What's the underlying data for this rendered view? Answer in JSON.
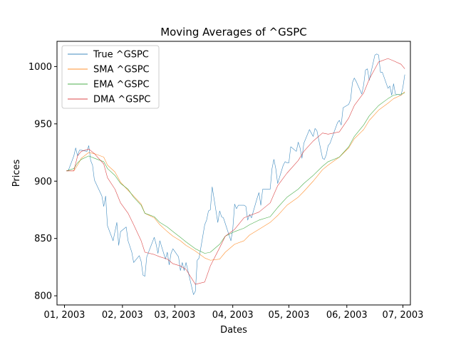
{
  "chart_data": {
    "type": "line",
    "title": "Moving Averages of ^GSPC",
    "xlabel": "Dates",
    "ylabel": "Prices",
    "ylim": [
      792,
      1022
    ],
    "xlim": [
      "2002-12-28",
      "2003-07-05"
    ],
    "x_ticks": [
      {
        "date": "2003-01-01",
        "label": "01, 2003"
      },
      {
        "date": "2003-02-01",
        "label": "02, 2003"
      },
      {
        "date": "2003-03-01",
        "label": "03, 2003"
      },
      {
        "date": "2003-04-01",
        "label": "04, 2003"
      },
      {
        "date": "2003-05-01",
        "label": "05, 2003"
      },
      {
        "date": "2003-06-01",
        "label": "06, 2003"
      },
      {
        "date": "2003-07-01",
        "label": "07, 2003"
      }
    ],
    "y_ticks": [
      800,
      850,
      900,
      950,
      1000
    ],
    "legend_position": "top-left",
    "grid": false,
    "series": [
      {
        "name": "True ^GSPC",
        "color": "#1f77b4",
        "points": [
          [
            "2003-01-02",
            909
          ],
          [
            "2003-01-03",
            909
          ],
          [
            "2003-01-06",
            922
          ],
          [
            "2003-01-07",
            929
          ],
          [
            "2003-01-08",
            922
          ],
          [
            "2003-01-09",
            927
          ],
          [
            "2003-01-10",
            927
          ],
          [
            "2003-01-13",
            926
          ],
          [
            "2003-01-14",
            931
          ],
          [
            "2003-01-15",
            918
          ],
          [
            "2003-01-16",
            914
          ],
          [
            "2003-01-17",
            901
          ],
          [
            "2003-01-21",
            887
          ],
          [
            "2003-01-22",
            878
          ],
          [
            "2003-01-23",
            887
          ],
          [
            "2003-01-24",
            861
          ],
          [
            "2003-01-27",
            848
          ],
          [
            "2003-01-28",
            856
          ],
          [
            "2003-01-29",
            864
          ],
          [
            "2003-01-30",
            844
          ],
          [
            "2003-01-31",
            856
          ],
          [
            "2003-02-03",
            860
          ],
          [
            "2003-02-04",
            848
          ],
          [
            "2003-02-05",
            843
          ],
          [
            "2003-02-06",
            838
          ],
          [
            "2003-02-07",
            829
          ],
          [
            "2003-02-10",
            835
          ],
          [
            "2003-02-11",
            830
          ],
          [
            "2003-02-12",
            818
          ],
          [
            "2003-02-13",
            817
          ],
          [
            "2003-02-14",
            834
          ],
          [
            "2003-02-18",
            851
          ],
          [
            "2003-02-19",
            845
          ],
          [
            "2003-02-20",
            837
          ],
          [
            "2003-02-21",
            848
          ],
          [
            "2003-02-24",
            832
          ],
          [
            "2003-02-25",
            838
          ],
          [
            "2003-02-26",
            827
          ],
          [
            "2003-02-27",
            837
          ],
          [
            "2003-02-28",
            841
          ],
          [
            "2003-03-03",
            834
          ],
          [
            "2003-03-04",
            822
          ],
          [
            "2003-03-05",
            829
          ],
          [
            "2003-03-06",
            822
          ],
          [
            "2003-03-07",
            829
          ],
          [
            "2003-03-10",
            808
          ],
          [
            "2003-03-11",
            801
          ],
          [
            "2003-03-12",
            804
          ],
          [
            "2003-03-13",
            831
          ],
          [
            "2003-03-14",
            833
          ],
          [
            "2003-03-17",
            862
          ],
          [
            "2003-03-18",
            866
          ],
          [
            "2003-03-19",
            874
          ],
          [
            "2003-03-20",
            875
          ],
          [
            "2003-03-21",
            895
          ],
          [
            "2003-03-24",
            864
          ],
          [
            "2003-03-25",
            874
          ],
          [
            "2003-03-26",
            869
          ],
          [
            "2003-03-27",
            868
          ],
          [
            "2003-03-28",
            863
          ],
          [
            "2003-03-31",
            848
          ],
          [
            "2003-04-01",
            858
          ],
          [
            "2003-04-02",
            880
          ],
          [
            "2003-04-03",
            876
          ],
          [
            "2003-04-04",
            879
          ],
          [
            "2003-04-07",
            879
          ],
          [
            "2003-04-08",
            878
          ],
          [
            "2003-04-09",
            866
          ],
          [
            "2003-04-10",
            871
          ],
          [
            "2003-04-11",
            868
          ],
          [
            "2003-04-14",
            885
          ],
          [
            "2003-04-15",
            890
          ],
          [
            "2003-04-16",
            879
          ],
          [
            "2003-04-17",
            893
          ],
          [
            "2003-04-21",
            893
          ],
          [
            "2003-04-22",
            911
          ],
          [
            "2003-04-23",
            919
          ],
          [
            "2003-04-24",
            911
          ],
          [
            "2003-04-25",
            898
          ],
          [
            "2003-04-28",
            914
          ],
          [
            "2003-04-29",
            917
          ],
          [
            "2003-04-30",
            916
          ],
          [
            "2003-05-01",
            916
          ],
          [
            "2003-05-02",
            930
          ],
          [
            "2003-05-05",
            926
          ],
          [
            "2003-05-06",
            934
          ],
          [
            "2003-05-07",
            929
          ],
          [
            "2003-05-08",
            920
          ],
          [
            "2003-05-09",
            933
          ],
          [
            "2003-05-12",
            945
          ],
          [
            "2003-05-13",
            942
          ],
          [
            "2003-05-14",
            939
          ],
          [
            "2003-05-15",
            946
          ],
          [
            "2003-05-16",
            944
          ],
          [
            "2003-05-19",
            920
          ],
          [
            "2003-05-20",
            919
          ],
          [
            "2003-05-21",
            923
          ],
          [
            "2003-05-22",
            931
          ],
          [
            "2003-05-23",
            933
          ],
          [
            "2003-05-27",
            951
          ],
          [
            "2003-05-28",
            953
          ],
          [
            "2003-05-29",
            949
          ],
          [
            "2003-05-30",
            964
          ],
          [
            "2003-06-02",
            967
          ],
          [
            "2003-06-03",
            971
          ],
          [
            "2003-06-04",
            986
          ],
          [
            "2003-06-05",
            990
          ],
          [
            "2003-06-06",
            987
          ],
          [
            "2003-06-09",
            976
          ],
          [
            "2003-06-10",
            984
          ],
          [
            "2003-06-11",
            997
          ],
          [
            "2003-06-12",
            998
          ],
          [
            "2003-06-13",
            988
          ],
          [
            "2003-06-16",
            1010
          ],
          [
            "2003-06-17",
            1011
          ],
          [
            "2003-06-18",
            1010
          ],
          [
            "2003-06-19",
            995
          ],
          [
            "2003-06-20",
            995
          ],
          [
            "2003-06-23",
            981
          ],
          [
            "2003-06-24",
            983
          ],
          [
            "2003-06-25",
            975
          ],
          [
            "2003-06-26",
            985
          ],
          [
            "2003-06-27",
            976
          ],
          [
            "2003-06-30",
            975
          ],
          [
            "2003-07-01",
            982
          ],
          [
            "2003-07-02",
            993
          ]
        ]
      },
      {
        "name": "SMA ^GSPC",
        "color": "#ff7f0e",
        "points": [
          [
            "2003-01-02",
            909
          ],
          [
            "2003-01-06",
            909
          ],
          [
            "2003-01-08",
            914
          ],
          [
            "2003-01-10",
            920
          ],
          [
            "2003-01-14",
            925
          ],
          [
            "2003-01-17",
            924
          ],
          [
            "2003-01-22",
            921
          ],
          [
            "2003-01-24",
            914
          ],
          [
            "2003-01-28",
            908
          ],
          [
            "2003-01-31",
            899
          ],
          [
            "2003-02-04",
            892
          ],
          [
            "2003-02-07",
            887
          ],
          [
            "2003-02-11",
            880
          ],
          [
            "2003-02-13",
            872
          ],
          [
            "2003-02-18",
            868
          ],
          [
            "2003-02-21",
            862
          ],
          [
            "2003-02-25",
            856
          ],
          [
            "2003-02-28",
            852
          ],
          [
            "2003-03-04",
            848
          ],
          [
            "2003-03-07",
            844
          ],
          [
            "2003-03-12",
            839
          ],
          [
            "2003-03-17",
            833
          ],
          [
            "2003-03-20",
            831
          ],
          [
            "2003-03-25",
            832
          ],
          [
            "2003-03-28",
            838
          ],
          [
            "2003-04-02",
            845
          ],
          [
            "2003-04-07",
            848
          ],
          [
            "2003-04-10",
            853
          ],
          [
            "2003-04-15",
            858
          ],
          [
            "2003-04-21",
            864
          ],
          [
            "2003-04-25",
            870
          ],
          [
            "2003-04-30",
            879
          ],
          [
            "2003-05-06",
            886
          ],
          [
            "2003-05-09",
            891
          ],
          [
            "2003-05-14",
            900
          ],
          [
            "2003-05-19",
            910
          ],
          [
            "2003-05-22",
            914
          ],
          [
            "2003-05-28",
            921
          ],
          [
            "2003-06-02",
            929
          ],
          [
            "2003-06-05",
            937
          ],
          [
            "2003-06-10",
            945
          ],
          [
            "2003-06-13",
            953
          ],
          [
            "2003-06-18",
            962
          ],
          [
            "2003-06-23",
            968
          ],
          [
            "2003-06-26",
            972
          ],
          [
            "2003-06-30",
            975
          ],
          [
            "2003-07-02",
            978
          ]
        ]
      },
      {
        "name": "EMA ^GSPC",
        "color": "#2ca02c",
        "points": [
          [
            "2003-01-02",
            909
          ],
          [
            "2003-01-06",
            911
          ],
          [
            "2003-01-08",
            916
          ],
          [
            "2003-01-10",
            919
          ],
          [
            "2003-01-14",
            922
          ],
          [
            "2003-01-17",
            920
          ],
          [
            "2003-01-22",
            917
          ],
          [
            "2003-01-24",
            911
          ],
          [
            "2003-01-28",
            905
          ],
          [
            "2003-01-31",
            898
          ],
          [
            "2003-02-04",
            893
          ],
          [
            "2003-02-07",
            886
          ],
          [
            "2003-02-11",
            879
          ],
          [
            "2003-02-13",
            872
          ],
          [
            "2003-02-18",
            869
          ],
          [
            "2003-02-21",
            864
          ],
          [
            "2003-02-25",
            860
          ],
          [
            "2003-02-28",
            856
          ],
          [
            "2003-03-04",
            851
          ],
          [
            "2003-03-07",
            847
          ],
          [
            "2003-03-12",
            841
          ],
          [
            "2003-03-17",
            837
          ],
          [
            "2003-03-20",
            838
          ],
          [
            "2003-03-25",
            845
          ],
          [
            "2003-03-28",
            852
          ],
          [
            "2003-04-02",
            856
          ],
          [
            "2003-04-07",
            859
          ],
          [
            "2003-04-10",
            862
          ],
          [
            "2003-04-15",
            866
          ],
          [
            "2003-04-21",
            869
          ],
          [
            "2003-04-25",
            877
          ],
          [
            "2003-04-30",
            886
          ],
          [
            "2003-05-06",
            893
          ],
          [
            "2003-05-09",
            898
          ],
          [
            "2003-05-14",
            905
          ],
          [
            "2003-05-19",
            913
          ],
          [
            "2003-05-22",
            917
          ],
          [
            "2003-05-28",
            921
          ],
          [
            "2003-06-02",
            930
          ],
          [
            "2003-06-05",
            939
          ],
          [
            "2003-06-10",
            949
          ],
          [
            "2003-06-13",
            957
          ],
          [
            "2003-06-18",
            966
          ],
          [
            "2003-06-23",
            972
          ],
          [
            "2003-06-26",
            975
          ],
          [
            "2003-06-30",
            976
          ],
          [
            "2003-07-02",
            977
          ]
        ]
      },
      {
        "name": "DMA ^GSPC",
        "color": "#d62728",
        "points": [
          [
            "2003-01-02",
            909
          ],
          [
            "2003-01-06",
            909
          ],
          [
            "2003-01-08",
            922
          ],
          [
            "2003-01-10",
            926
          ],
          [
            "2003-01-14",
            928
          ],
          [
            "2003-01-17",
            924
          ],
          [
            "2003-01-22",
            915
          ],
          [
            "2003-01-24",
            903
          ],
          [
            "2003-01-28",
            893
          ],
          [
            "2003-01-31",
            881
          ],
          [
            "2003-02-04",
            872
          ],
          [
            "2003-02-07",
            862
          ],
          [
            "2003-02-11",
            848
          ],
          [
            "2003-02-13",
            838
          ],
          [
            "2003-02-18",
            836
          ],
          [
            "2003-02-21",
            834
          ],
          [
            "2003-02-25",
            832
          ],
          [
            "2003-02-28",
            828
          ],
          [
            "2003-03-04",
            826
          ],
          [
            "2003-03-07",
            823
          ],
          [
            "2003-03-12",
            810
          ],
          [
            "2003-03-17",
            812
          ],
          [
            "2003-03-20",
            826
          ],
          [
            "2003-03-25",
            842
          ],
          [
            "2003-03-28",
            852
          ],
          [
            "2003-04-02",
            858
          ],
          [
            "2003-04-07",
            868
          ],
          [
            "2003-04-10",
            870
          ],
          [
            "2003-04-15",
            873
          ],
          [
            "2003-04-21",
            881
          ],
          [
            "2003-04-25",
            896
          ],
          [
            "2003-04-30",
            907
          ],
          [
            "2003-05-06",
            918
          ],
          [
            "2003-05-09",
            926
          ],
          [
            "2003-05-14",
            935
          ],
          [
            "2003-05-19",
            942
          ],
          [
            "2003-05-22",
            941
          ],
          [
            "2003-05-28",
            943
          ],
          [
            "2003-06-02",
            955
          ],
          [
            "2003-06-05",
            966
          ],
          [
            "2003-06-10",
            977
          ],
          [
            "2003-06-13",
            989
          ],
          [
            "2003-06-18",
            1004
          ],
          [
            "2003-06-23",
            1007
          ],
          [
            "2003-06-26",
            1005
          ],
          [
            "2003-06-30",
            1002
          ],
          [
            "2003-07-02",
            998
          ]
        ]
      }
    ]
  }
}
